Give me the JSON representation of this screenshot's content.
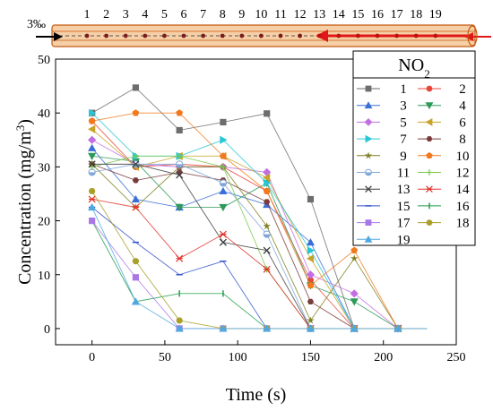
{
  "diagram": {
    "slope_label": "3‰",
    "section_numbers": [
      "1",
      "2",
      "3",
      "4",
      "5",
      "6",
      "7",
      "8",
      "9",
      "10",
      "11",
      "12",
      "13",
      "14",
      "15",
      "16",
      "17",
      "18",
      "19"
    ]
  },
  "chart_data": {
    "type": "line",
    "title": "",
    "xlabel": "Time (s)",
    "ylabel": "Concentration (mg/m³)",
    "ylabel_parts": {
      "main": "Concentration (mg/m",
      "sup": "3",
      "end": ")"
    },
    "xlim": [
      -25,
      250
    ],
    "ylim": [
      -3,
      50
    ],
    "xticks": [
      0,
      50,
      100,
      150,
      200,
      250
    ],
    "yticks": [
      0,
      10,
      20,
      30,
      40,
      50
    ],
    "grid": false,
    "legend": {
      "title": "NO2",
      "title_parts": {
        "main": "NO",
        "sub": "2"
      },
      "placement": "top-right",
      "columns": 2
    },
    "x": [
      0,
      30,
      60,
      90,
      120,
      150,
      180,
      210,
      230
    ],
    "series": [
      {
        "name": "1",
        "color": "#6d6d6d",
        "marker": "square",
        "values": [
          40.0,
          44.7,
          36.8,
          38.3,
          39.9,
          24.0,
          0,
          0,
          0
        ]
      },
      {
        "name": "2",
        "color": "#e8463a",
        "marker": "circle",
        "values": [
          38.5,
          30.0,
          30.5,
          30.0,
          25.5,
          9.0,
          0,
          0,
          0
        ]
      },
      {
        "name": "3",
        "color": "#3a6fd8",
        "marker": "triangle",
        "values": [
          33.5,
          24.0,
          22.5,
          25.5,
          23.0,
          16.0,
          0,
          0,
          0
        ]
      },
      {
        "name": "4",
        "color": "#2e9a5a",
        "marker": "triangle-down",
        "values": [
          32.0,
          31.0,
          22.5,
          22.5,
          27.0,
          8.0,
          5.0,
          0,
          0
        ]
      },
      {
        "name": "5",
        "color": "#c36ee0",
        "marker": "diamond",
        "values": [
          35.0,
          30.5,
          30.0,
          30.0,
          29.0,
          10.0,
          6.5,
          0,
          0
        ]
      },
      {
        "name": "6",
        "color": "#c9a227",
        "marker": "triangle-left",
        "values": [
          37.0,
          30.0,
          32.0,
          32.0,
          28.0,
          13.0,
          0,
          0,
          0
        ]
      },
      {
        "name": "7",
        "color": "#29c7d6",
        "marker": "triangle-right",
        "values": [
          40.0,
          32.0,
          32.0,
          35.0,
          27.0,
          14.5,
          0,
          0,
          0
        ]
      },
      {
        "name": "8",
        "color": "#7a3b3b",
        "marker": "hexagon",
        "values": [
          30.5,
          27.5,
          29.0,
          27.5,
          23.5,
          5.0,
          0,
          0,
          0
        ]
      },
      {
        "name": "9",
        "color": "#7f7f1f",
        "marker": "star",
        "values": [
          30.5,
          22.5,
          30.0,
          30.0,
          19.0,
          1.5,
          13.0,
          0,
          0
        ]
      },
      {
        "name": "10",
        "color": "#f27a1e",
        "marker": "pentagon",
        "values": [
          38.5,
          40.0,
          40.0,
          32.0,
          25.5,
          8.0,
          14.5,
          0,
          0
        ]
      },
      {
        "name": "11",
        "color": "#7fa6d9",
        "marker": "half-circle",
        "values": [
          29.0,
          30.5,
          30.5,
          27.0,
          17.5,
          0,
          0,
          0,
          0
        ]
      },
      {
        "name": "12",
        "color": "#7cc94a",
        "marker": "plus",
        "values": [
          30.0,
          32.0,
          32.0,
          30.0,
          11.0,
          0,
          0,
          0,
          0
        ]
      },
      {
        "name": "13",
        "color": "#3d3d3d",
        "marker": "x",
        "values": [
          30.5,
          30.5,
          28.5,
          16.0,
          14.5,
          0,
          0,
          0,
          0
        ]
      },
      {
        "name": "14",
        "color": "#e0342c",
        "marker": "asterisk",
        "values": [
          24.0,
          22.5,
          13.0,
          17.5,
          11.0,
          0,
          0,
          0,
          0
        ]
      },
      {
        "name": "15",
        "color": "#3355cc",
        "marker": "dash",
        "values": [
          22.5,
          16.0,
          10.0,
          12.5,
          0,
          0,
          0,
          0,
          0
        ]
      },
      {
        "name": "16",
        "color": "#1f9e4a",
        "marker": "vbar",
        "values": [
          20.0,
          5.0,
          6.5,
          6.5,
          0,
          0,
          0,
          0,
          0
        ]
      },
      {
        "name": "17",
        "color": "#a978e6",
        "marker": "square",
        "values": [
          20.0,
          9.5,
          0,
          0,
          0,
          0,
          0,
          0,
          0
        ]
      },
      {
        "name": "18",
        "color": "#a8a02a",
        "marker": "circle",
        "values": [
          25.5,
          12.5,
          1.5,
          0,
          0,
          0,
          0,
          0,
          0
        ]
      },
      {
        "name": "19",
        "color": "#4fa8e0",
        "marker": "triangle",
        "values": [
          22.5,
          5.0,
          0,
          0,
          0,
          0,
          0,
          0,
          0
        ]
      }
    ]
  }
}
